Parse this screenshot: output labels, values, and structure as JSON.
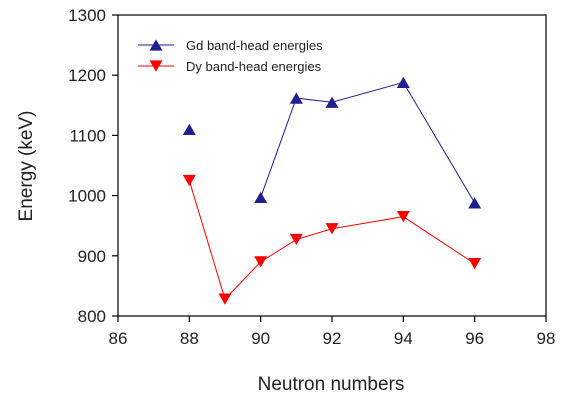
{
  "chart_data": {
    "type": "line",
    "xlabel": "Neutron numbers",
    "ylabel": "Energy (keV)",
    "xlim": [
      86,
      98
    ],
    "ylim": [
      800,
      1300
    ],
    "x_ticks": [
      "86",
      "88",
      "90",
      "92",
      "94",
      "96",
      "98"
    ],
    "y_ticks": [
      "800",
      "900",
      "1000",
      "1100",
      "1200",
      "1300"
    ],
    "grid": false,
    "legend_position": "top-left",
    "series": [
      {
        "name": "Gd band-head energies",
        "color": "#1f1f8f",
        "marker": "triangle-up",
        "points": [
          [
            88,
            1110
          ],
          [
            90,
            997
          ],
          [
            91,
            1162
          ],
          [
            92,
            1155
          ],
          [
            94,
            1188
          ],
          [
            96,
            988
          ]
        ],
        "line_segments": [
          [
            90,
            91,
            92,
            94,
            96
          ]
        ]
      },
      {
        "name": "Dy band-head energies",
        "color": "#ff0000",
        "marker": "triangle-down",
        "points": [
          [
            88,
            1025
          ],
          [
            89,
            828
          ],
          [
            90,
            890
          ],
          [
            91,
            927
          ],
          [
            92,
            945
          ],
          [
            94,
            965
          ],
          [
            96,
            887
          ]
        ],
        "line_segments": [
          [
            88,
            89,
            90,
            91,
            92,
            94,
            96
          ]
        ]
      }
    ]
  }
}
